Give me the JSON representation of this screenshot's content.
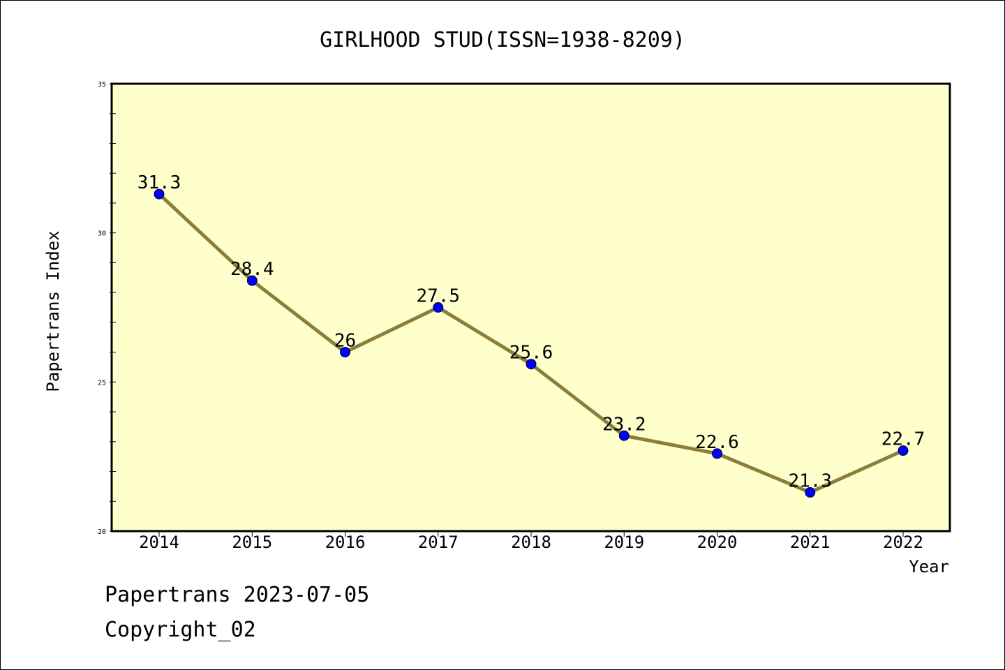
{
  "chart_data": {
    "type": "line",
    "title": "GIRLHOOD STUD(ISSN=1938-8209)",
    "xlabel": "Year",
    "ylabel": "Papertrans Index",
    "categories": [
      "2014",
      "2015",
      "2016",
      "2017",
      "2018",
      "2019",
      "2020",
      "2021",
      "2022"
    ],
    "values": [
      31.3,
      28.4,
      26,
      27.5,
      25.6,
      23.2,
      22.6,
      21.3,
      22.7
    ],
    "data_labels": [
      "31.3",
      "28.4",
      "26",
      "27.5",
      "25.6",
      "23.2",
      "22.6",
      "21.3",
      "22.7"
    ],
    "ylim": [
      20,
      35
    ],
    "yticks": [
      "20",
      "25",
      "30",
      "35"
    ],
    "grid": false,
    "legend": "none",
    "colors": {
      "line": "#8b7d3a",
      "marker": "#0000ff",
      "plot_bg": "#ffffcc"
    }
  },
  "footer": {
    "line1": "Papertrans 2023-07-05",
    "line2": "Copyright_02"
  }
}
